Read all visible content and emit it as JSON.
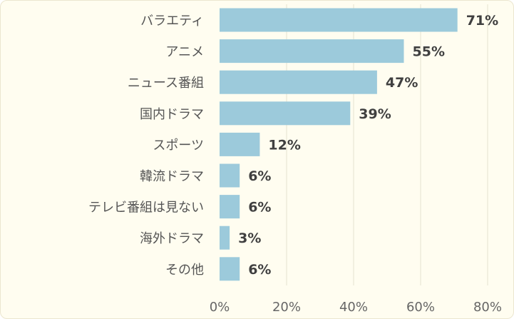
{
  "chart_data": {
    "type": "bar",
    "orientation": "horizontal",
    "title": "",
    "xlabel": "",
    "ylabel": "",
    "categories": [
      "バラエティ",
      "アニメ",
      "ニュース番組",
      "国内ドラマ",
      "スポーツ",
      "韓流ドラマ",
      "テレビ番組は見ない",
      "海外ドラマ",
      "その他"
    ],
    "values": [
      71,
      55,
      47,
      39,
      12,
      6,
      6,
      3,
      6
    ],
    "value_labels": [
      "71%",
      "55%",
      "47%",
      "39%",
      "12%",
      "6%",
      "6%",
      "3%",
      "6%"
    ],
    "xlim": [
      0,
      80
    ],
    "ticks": [
      0,
      20,
      40,
      60,
      80
    ],
    "tick_labels": [
      "0%",
      "20%",
      "40%",
      "60%",
      "80%"
    ],
    "grid": true,
    "legend": "none",
    "colors": {
      "bar": "#9ccadb",
      "background": "#fffdf0",
      "grid": "#e6e2cf"
    }
  }
}
